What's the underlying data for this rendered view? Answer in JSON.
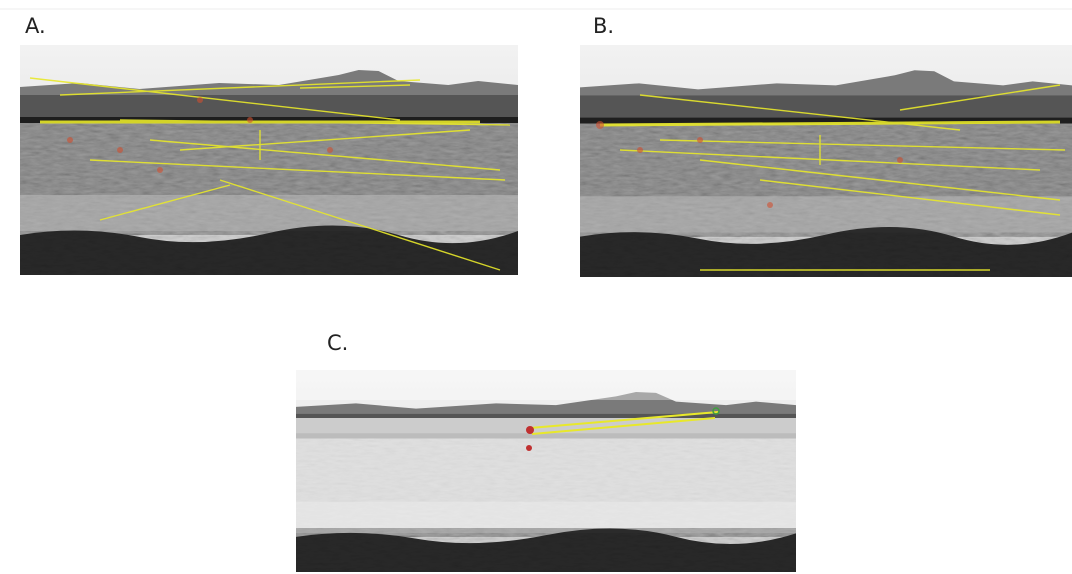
{
  "panels": [
    {
      "label": "A."
    },
    {
      "label": "B."
    },
    {
      "label": "C."
    }
  ]
}
